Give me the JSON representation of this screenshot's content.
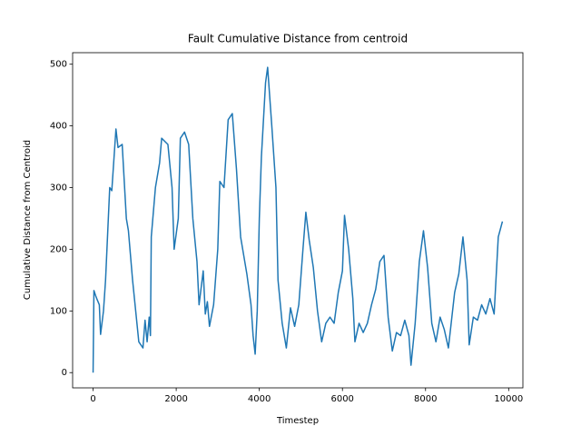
{
  "chart_data": {
    "type": "line",
    "title": "Fault Cumulative Distance from centroid",
    "x_label": "Timestep",
    "y_label": "Cumulative Distance from Centroid",
    "x": [
      0,
      20,
      60,
      100,
      150,
      180,
      250,
      300,
      400,
      450,
      550,
      600,
      700,
      800,
      850,
      950,
      1100,
      1200,
      1250,
      1300,
      1350,
      1380,
      1400,
      1500,
      1600,
      1650,
      1800,
      1900,
      1950,
      2050,
      2100,
      2200,
      2300,
      2400,
      2500,
      2550,
      2650,
      2700,
      2750,
      2800,
      2900,
      3000,
      3050,
      3150,
      3250,
      3350,
      3450,
      3550,
      3700,
      3800,
      3850,
      3900,
      3950,
      4000,
      4050,
      4150,
      4200,
      4300,
      4400,
      4450,
      4550,
      4650,
      4750,
      4850,
      4950,
      5050,
      5120,
      5200,
      5300,
      5400,
      5500,
      5600,
      5700,
      5800,
      5900,
      6000,
      6050,
      6150,
      6250,
      6300,
      6400,
      6500,
      6600,
      6700,
      6800,
      6900,
      7000,
      7100,
      7200,
      7300,
      7400,
      7500,
      7600,
      7650,
      7750,
      7850,
      7950,
      8050,
      8150,
      8250,
      8350,
      8450,
      8550,
      8600,
      8700,
      8800,
      8900,
      9000,
      9050,
      9150,
      9250,
      9350,
      9450,
      9550,
      9650,
      9750,
      9850
    ],
    "series": [
      {
        "color": "#1f77b4",
        "values": [
          0,
          133,
          125,
          118,
          110,
          62,
          100,
          150,
          300,
          295,
          395,
          365,
          370,
          250,
          230,
          150,
          50,
          40,
          85,
          50,
          90,
          60,
          220,
          300,
          340,
          380,
          370,
          300,
          200,
          250,
          380,
          390,
          370,
          250,
          180,
          110,
          165,
          95,
          115,
          75,
          110,
          200,
          310,
          300,
          410,
          420,
          330,
          220,
          160,
          110,
          60,
          30,
          100,
          250,
          350,
          470,
          495,
          400,
          300,
          150,
          80,
          40,
          105,
          75,
          110,
          200,
          260,
          215,
          170,
          100,
          50,
          80,
          90,
          80,
          130,
          165,
          255,
          200,
          120,
          50,
          80,
          65,
          80,
          110,
          135,
          180,
          190,
          90,
          35,
          65,
          60,
          85,
          60,
          12,
          80,
          180,
          230,
          170,
          80,
          50,
          90,
          70,
          40,
          70,
          130,
          160,
          220,
          150,
          45,
          90,
          85,
          110,
          95,
          120,
          95,
          220,
          245
        ]
      }
    ],
    "xlim": [
      -492.5,
      10342.5
    ],
    "ylim": [
      -24.7,
      518.7
    ],
    "xticks": [
      0,
      2000,
      4000,
      6000,
      8000,
      10000
    ],
    "yticks": [
      0,
      100,
      200,
      300,
      400,
      500
    ]
  }
}
